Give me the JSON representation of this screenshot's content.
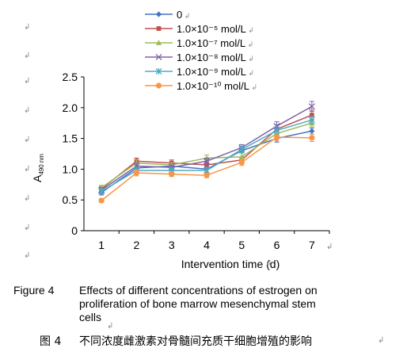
{
  "paragraph_mark": "↲",
  "chart_data": {
    "type": "line",
    "categories": [
      "1",
      "2",
      "3",
      "4",
      "5",
      "6",
      "7"
    ],
    "ylabel": "A",
    "ylabel_sub": "490 nm",
    "xlabel": "Intervention time (d)",
    "ylim": [
      0,
      2.5
    ],
    "yticks": [
      "0",
      "0.5",
      "1.0",
      "1.5",
      "2.0",
      "2.5"
    ],
    "grid": false,
    "legend_position": "top",
    "series": [
      {
        "name": "0",
        "color": "#4472C4",
        "marker": "diamond",
        "values": [
          0.62,
          1.02,
          1.05,
          1.0,
          1.3,
          1.5,
          1.62
        ],
        "err": [
          0.04,
          0.05,
          0.04,
          0.05,
          0.05,
          0.06,
          0.05
        ]
      },
      {
        "name": "1.0×10⁻⁵ mol/L",
        "color": "#C0504D",
        "marker": "square",
        "values": [
          0.68,
          1.13,
          1.1,
          1.07,
          1.15,
          1.65,
          1.88
        ],
        "err": [
          0.04,
          0.05,
          0.05,
          0.05,
          0.05,
          0.07,
          0.08
        ]
      },
      {
        "name": "1.0×10⁻⁷ mol/L",
        "color": "#9BBB59",
        "marker": "triangle",
        "values": [
          0.7,
          1.1,
          1.07,
          1.18,
          1.2,
          1.58,
          1.75
        ],
        "err": [
          0.04,
          0.05,
          0.04,
          0.05,
          0.05,
          0.06,
          0.06
        ]
      },
      {
        "name": "1.0×10⁻⁸ mol/L",
        "color": "#7F63A8",
        "marker": "x",
        "values": [
          0.66,
          1.05,
          1.03,
          1.13,
          1.35,
          1.7,
          2.02
        ],
        "err": [
          0.04,
          0.05,
          0.04,
          0.05,
          0.05,
          0.07,
          0.08
        ]
      },
      {
        "name": "1.0×10⁻⁹ mol/L",
        "color": "#4BACC6",
        "marker": "asterisk",
        "values": [
          0.64,
          0.98,
          0.98,
          0.98,
          1.32,
          1.63,
          1.8
        ],
        "err": [
          0.04,
          0.05,
          0.04,
          0.05,
          0.05,
          0.06,
          0.06
        ]
      },
      {
        "name": "1.0×10⁻¹⁰ mol/L",
        "color": "#F79646",
        "marker": "circle",
        "values": [
          0.49,
          0.94,
          0.92,
          0.9,
          1.11,
          1.52,
          1.51
        ],
        "err": [
          0.03,
          0.05,
          0.04,
          0.04,
          0.05,
          0.06,
          0.06
        ]
      }
    ]
  },
  "caption": {
    "label": "Figure 4",
    "line1": "Effects of different concentrations of estrogen on",
    "line2": "proliferation of bone marrow mesenchymal stem",
    "line3": "cells",
    "cn_label": "图 4",
    "cn_text": "不同浓度雌激素对骨髓间充质干细胞增殖的影响"
  }
}
